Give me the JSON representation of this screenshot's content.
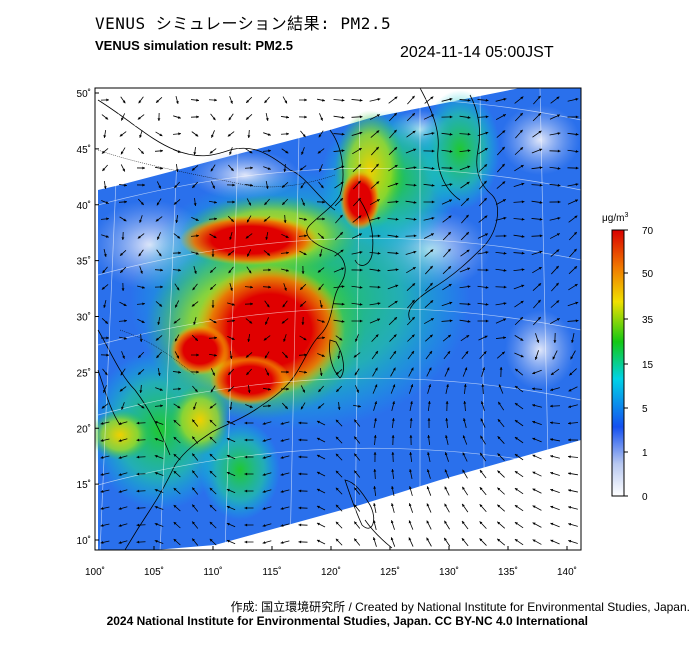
{
  "header": {
    "title_jp": "VENUS シミュレーション結果: PM2.5",
    "title_en": "VENUS simulation result: PM2.5",
    "timestamp": "2024-11-14 05:00JST"
  },
  "map": {
    "lat_labels": [
      "50˚",
      "45˚",
      "40˚",
      "35˚",
      "30˚",
      "25˚",
      "20˚",
      "15˚",
      "10˚"
    ],
    "lon_labels": [
      "100˚",
      "105˚",
      "110˚",
      "115˚",
      "120˚",
      "125˚",
      "130˚",
      "135˚",
      "140˚"
    ],
    "lat_values": [
      50,
      45,
      40,
      35,
      30,
      25,
      20,
      15,
      10
    ],
    "lon_values": [
      100,
      105,
      110,
      115,
      120,
      125,
      130,
      135,
      140
    ]
  },
  "colorbar": {
    "unit_base": "μg/m",
    "unit_sup": "3",
    "labels": [
      "70",
      "50",
      "35",
      "15",
      "5",
      "1",
      "0"
    ],
    "values": [
      70,
      50,
      35,
      15,
      5,
      1,
      0
    ],
    "colors": [
      "#d90000",
      "#f07800",
      "#f0e000",
      "#14c814",
      "#00d2e6",
      "#1450f0",
      "#ffffff"
    ]
  },
  "footer": {
    "credit": "作成: 国立環境研究所 / Created by National Institute for Environmental Studies, Japan.",
    "license": "2024 National Institute for Environmental Studies, Japan. CC BY-NC 4.0 International"
  }
}
